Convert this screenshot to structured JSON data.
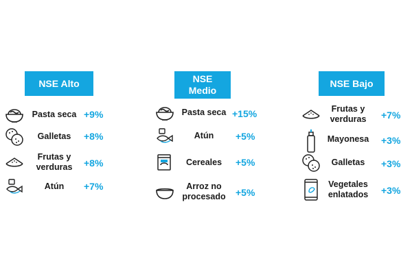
{
  "columns": [
    {
      "title": "NSE Alto",
      "items": [
        {
          "icon": "bowl-noodles-icon",
          "label": "Pasta seca",
          "value": "+9%"
        },
        {
          "icon": "cookies-icon",
          "label": "Galletas",
          "value": "+8%"
        },
        {
          "icon": "watermelon-slice-icon",
          "label": "Frutas y\nverduras",
          "value": "+8%"
        },
        {
          "icon": "tuna-fish-icon",
          "label": "Atún",
          "value": "+7%"
        }
      ]
    },
    {
      "title": "NSE\nMedio",
      "items": [
        {
          "icon": "bowl-noodles-icon",
          "label": "Pasta seca",
          "value": "+15%"
        },
        {
          "icon": "tuna-fish-icon",
          "label": "Atún",
          "value": "+5%"
        },
        {
          "icon": "cereal-box-icon",
          "label": "Cereales",
          "value": "+5%"
        },
        {
          "icon": "empty-bowl-icon",
          "label": "Arroz no\nprocesado",
          "value": "+5%"
        }
      ]
    },
    {
      "title": "NSE Bajo",
      "items": [
        {
          "icon": "watermelon-slice-icon",
          "label": "Frutas y\nverduras",
          "value": "+7%"
        },
        {
          "icon": "mayonnaise-bottle-icon",
          "label": "Mayonesa",
          "value": "+3%"
        },
        {
          "icon": "cookies-icon",
          "label": "Galletas",
          "value": "+3%"
        },
        {
          "icon": "canned-vegetables-icon",
          "label": "Vegetales\nenlatados",
          "value": "+3%"
        }
      ]
    }
  ],
  "colors": {
    "accent": "#14a6e0",
    "text": "#1a1a1a"
  }
}
